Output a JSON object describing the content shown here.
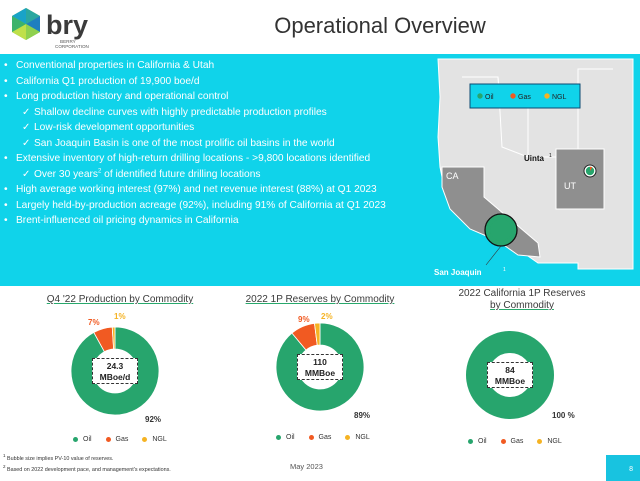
{
  "header": {
    "logo_text": "bry",
    "logo_subtext_1": "BERRY",
    "logo_subtext_2": "CORPORATION",
    "title": "Operational Overview"
  },
  "bullets": [
    {
      "level": 1,
      "text": "Conventional properties in California & Utah"
    },
    {
      "level": 1,
      "text": "California Q1 production of 19,900 boe/d"
    },
    {
      "level": 1,
      "text": "Long production history and operational control"
    },
    {
      "level": 2,
      "text": "Shallow decline curves with highly predictable production profiles"
    },
    {
      "level": 2,
      "text": "Low-risk development opportunities"
    },
    {
      "level": 2,
      "text": "San Joaquin Basin is one of the most prolific oil basins in the world"
    },
    {
      "level": 1,
      "text": "Extensive inventory of high-return drilling locations - >9,800 locations identified"
    },
    {
      "level": 2,
      "text_a": "Over 30 years",
      "sup": "2",
      "text_b": " of identified future drilling locations"
    },
    {
      "level": 1,
      "text": "High average working interest (97%) and net revenue interest (88%) at Q1 2023"
    },
    {
      "level": 1,
      "text": "Largely held-by-production acreage (92%), including 91% of California at Q1 2023"
    },
    {
      "level": 1,
      "text": "Brent-influenced oil pricing dynamics in California"
    }
  ],
  "map": {
    "legend": {
      "oil": "Oil",
      "gas": "Gas",
      "ngl": "NGL"
    },
    "state_ca": "CA",
    "state_ut": "UT",
    "label_uinta": "Uinta",
    "uinta_sup": "1",
    "label_san_joaquin": "San Joaquin",
    "sj_sup": "1"
  },
  "legend_labels": {
    "oil": "Oil",
    "gas": "Gas",
    "ngl": "NGL"
  },
  "colors": {
    "oil": "#27a56d",
    "gas": "#f15a22",
    "ngl": "#f5b323",
    "band": "#10d3ea",
    "map_land": "#e3e3e3",
    "map_highlight": "#8f8f8f"
  },
  "chart_data": [
    {
      "type": "pie",
      "title": "Q4 '22 Production by Commodity",
      "categories": [
        "Oil",
        "Gas",
        "NGL"
      ],
      "values": [
        92,
        7,
        1
      ],
      "labels": [
        "92%",
        "7%",
        "1%"
      ],
      "center_line1": "24.3",
      "center_line2": "MBoe/d"
    },
    {
      "type": "pie",
      "title": "2022 1P Reserves by Commodity",
      "categories": [
        "Oil",
        "Gas",
        "NGL"
      ],
      "values": [
        89,
        9,
        2
      ],
      "labels": [
        "89%",
        "9%",
        "2%"
      ],
      "center_line1": "110",
      "center_line2": "MMBoe"
    },
    {
      "type": "pie",
      "title_line1": "2022 California 1P Reserves",
      "title_line2": "by Commodity",
      "categories": [
        "Oil",
        "Gas",
        "NGL"
      ],
      "values": [
        100,
        0,
        0
      ],
      "labels": [
        "100 %"
      ],
      "center_line1": "84",
      "center_line2": "MMBoe"
    }
  ],
  "footnotes": {
    "fn1": "Bubble size implies PV-10 value of reserves.",
    "fn2": "Based on 2022 development pace, and management's expectations."
  },
  "date": "May 2023",
  "page_number": "8"
}
